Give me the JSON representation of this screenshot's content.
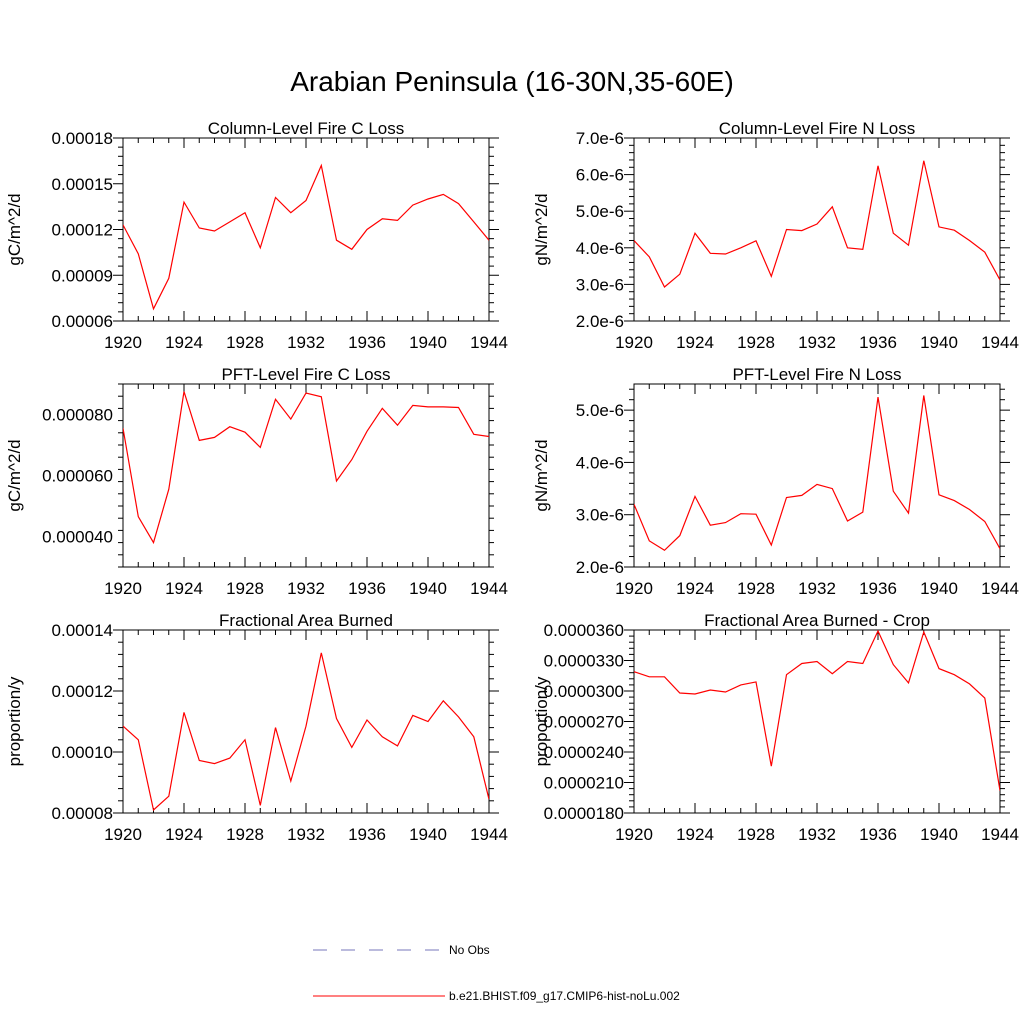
{
  "figure": {
    "title": "Arabian Peninsula (16-30N,35-60E)"
  },
  "legend": [
    {
      "label": "No Obs",
      "color": "#7777bb",
      "style": "dashed"
    },
    {
      "label": "b.e21.BHIST.f09_g17.CMIP6-hist-noLu.002",
      "color": "#ff0000",
      "style": "solid"
    }
  ],
  "chart_data": [
    {
      "type": "line",
      "title": "Column-Level Fire C Loss",
      "ylabel": "gC/m^2/d",
      "xlabel": "",
      "xlim": [
        1920,
        1944
      ],
      "ylim": [
        6e-05,
        0.00018
      ],
      "xticks": [
        1920,
        1924,
        1928,
        1932,
        1936,
        1940,
        1944
      ],
      "yticks": [
        6e-05,
        9e-05,
        0.00012,
        0.00015,
        0.00018
      ],
      "ytick_labels": [
        "0.00006",
        "0.00009",
        "0.00012",
        "0.00015",
        "0.00018"
      ],
      "series": [
        {
          "color": "#ff0000",
          "x": [
            1920,
            1921,
            1922,
            1923,
            1924,
            1925,
            1926,
            1927,
            1928,
            1929,
            1930,
            1931,
            1932,
            1933,
            1934,
            1935,
            1936,
            1937,
            1938,
            1939,
            1940,
            1941,
            1942,
            1943,
            1944
          ],
          "values": [
            0.000123,
            0.000104,
            6.8e-05,
            8.8e-05,
            0.000138,
            0.000121,
            0.000119,
            0.000125,
            0.000131,
            0.000108,
            0.000141,
            0.000131,
            0.000139,
            0.000162,
            0.000113,
            0.000107,
            0.00012,
            0.000127,
            0.000126,
            0.000136,
            0.00014,
            0.000143,
            0.000137,
            0.000125,
            0.000113
          ]
        }
      ]
    },
    {
      "type": "line",
      "title": "Column-Level Fire N Loss",
      "ylabel": "gN/m^2/d",
      "xlabel": "",
      "xlim": [
        1920,
        1944
      ],
      "ylim": [
        2e-06,
        7e-06
      ],
      "xticks": [
        1920,
        1924,
        1928,
        1932,
        1936,
        1940,
        1944
      ],
      "yticks": [
        2e-06,
        3e-06,
        4e-06,
        5e-06,
        6e-06,
        7e-06
      ],
      "ytick_labels": [
        "2.0e-6",
        "3.0e-6",
        "4.0e-6",
        "5.0e-6",
        "6.0e-6",
        "7.0e-6"
      ],
      "series": [
        {
          "color": "#ff0000",
          "x": [
            1920,
            1921,
            1922,
            1923,
            1924,
            1925,
            1926,
            1927,
            1928,
            1929,
            1930,
            1931,
            1932,
            1933,
            1934,
            1935,
            1936,
            1937,
            1938,
            1939,
            1940,
            1941,
            1942,
            1943,
            1944
          ],
          "values": [
            4.2e-06,
            3.75e-06,
            2.93e-06,
            3.28e-06,
            4.4e-06,
            3.85e-06,
            3.83e-06,
            4e-06,
            4.19e-06,
            3.22e-06,
            4.5e-06,
            4.47e-06,
            4.65e-06,
            5.12e-06,
            4e-06,
            3.96e-06,
            6.24e-06,
            4.4e-06,
            4.07e-06,
            6.38e-06,
            4.57e-06,
            4.48e-06,
            4.2e-06,
            3.88e-06,
            3.12e-06
          ]
        }
      ]
    },
    {
      "type": "line",
      "title": "PFT-Level Fire C Loss",
      "ylabel": "gC/m^2/d",
      "xlabel": "",
      "xlim": [
        1920,
        1944
      ],
      "ylim": [
        3e-05,
        9e-05
      ],
      "xticks": [
        1920,
        1924,
        1928,
        1932,
        1936,
        1940,
        1944
      ],
      "yticks": [
        4e-05,
        6e-05,
        8e-05
      ],
      "ytick_labels": [
        "0.000040",
        "0.000060",
        "0.000080"
      ],
      "series": [
        {
          "color": "#ff0000",
          "x": [
            1920,
            1921,
            1922,
            1923,
            1924,
            1925,
            1926,
            1927,
            1928,
            1929,
            1930,
            1931,
            1932,
            1933,
            1934,
            1935,
            1936,
            1937,
            1938,
            1939,
            1940,
            1941,
            1942,
            1943,
            1944
          ],
          "values": [
            7.55e-05,
            4.65e-05,
            3.8e-05,
            5.55e-05,
            8.75e-05,
            7.15e-05,
            7.25e-05,
            7.6e-05,
            7.42e-05,
            6.92e-05,
            8.5e-05,
            7.85e-05,
            8.7e-05,
            8.58e-05,
            5.82e-05,
            6.52e-05,
            7.45e-05,
            8.2e-05,
            7.65e-05,
            8.3e-05,
            8.25e-05,
            8.25e-05,
            8.23e-05,
            7.35e-05,
            7.28e-05
          ]
        }
      ]
    },
    {
      "type": "line",
      "title": "PFT-Level Fire N Loss",
      "ylabel": "gN/m^2/d",
      "xlabel": "",
      "xlim": [
        1920,
        1944
      ],
      "ylim": [
        2e-06,
        5.5e-06
      ],
      "xticks": [
        1920,
        1924,
        1928,
        1932,
        1936,
        1940,
        1944
      ],
      "yticks": [
        2e-06,
        3e-06,
        4e-06,
        5e-06
      ],
      "ytick_labels": [
        "2.0e-6",
        "3.0e-6",
        "4.0e-6",
        "5.0e-6"
      ],
      "series": [
        {
          "color": "#ff0000",
          "x": [
            1920,
            1921,
            1922,
            1923,
            1924,
            1925,
            1926,
            1927,
            1928,
            1929,
            1930,
            1931,
            1932,
            1933,
            1934,
            1935,
            1936,
            1937,
            1938,
            1939,
            1940,
            1941,
            1942,
            1943,
            1944
          ],
          "values": [
            3.2e-06,
            2.5e-06,
            2.32e-06,
            2.6e-06,
            3.35e-06,
            2.8e-06,
            2.85e-06,
            3.02e-06,
            3.01e-06,
            2.42e-06,
            3.33e-06,
            3.37e-06,
            3.58e-06,
            3.5e-06,
            2.88e-06,
            3.05e-06,
            5.25e-06,
            3.45e-06,
            3.03e-06,
            5.28e-06,
            3.38e-06,
            3.27e-06,
            3.1e-06,
            2.87e-06,
            2.35e-06
          ]
        }
      ]
    },
    {
      "type": "line",
      "title": "Fractional Area Burned",
      "ylabel": "proportion/y",
      "xlabel": "",
      "xlim": [
        1920,
        1944
      ],
      "ylim": [
        8e-05,
        0.00014
      ],
      "xticks": [
        1920,
        1924,
        1928,
        1932,
        1936,
        1940,
        1944
      ],
      "yticks": [
        8e-05,
        0.0001,
        0.00012,
        0.00014
      ],
      "ytick_labels": [
        "0.00008",
        "0.00010",
        "0.00012",
        "0.00014"
      ],
      "series": [
        {
          "color": "#ff0000",
          "x": [
            1920,
            1921,
            1922,
            1923,
            1924,
            1925,
            1926,
            1927,
            1928,
            1929,
            1930,
            1931,
            1932,
            1933,
            1934,
            1935,
            1936,
            1937,
            1938,
            1939,
            1940,
            1941,
            1942,
            1943,
            1944
          ],
          "values": [
            0.0001085,
            0.000104,
            8.1e-05,
            8.55e-05,
            0.000113,
            9.72e-05,
            9.62e-05,
            9.8e-05,
            0.000104,
            8.25e-05,
            0.000108,
            9.05e-05,
            0.0001085,
            0.0001325,
            0.000111,
            0.0001015,
            0.0001105,
            0.000105,
            0.000102,
            0.000112,
            0.00011,
            0.0001168,
            0.0001115,
            0.000105,
            8.45e-05
          ]
        }
      ]
    },
    {
      "type": "line",
      "title": "Fractional Area Burned - Crop",
      "ylabel": "proportion/y",
      "xlabel": "",
      "xlim": [
        1920,
        1944
      ],
      "ylim": [
        1.8e-05,
        3.6e-05
      ],
      "xticks": [
        1920,
        1924,
        1928,
        1932,
        1936,
        1940,
        1944
      ],
      "yticks": [
        1.8e-05,
        2.1e-05,
        2.4e-05,
        2.7e-05,
        3e-05,
        3.3e-05,
        3.6e-05
      ],
      "ytick_labels": [
        "0.0000180",
        "0.0000210",
        "0.0000240",
        "0.0000270",
        "0.0000300",
        "0.0000330",
        "0.0000360"
      ],
      "series": [
        {
          "color": "#ff0000",
          "x": [
            1920,
            1921,
            1922,
            1923,
            1924,
            1925,
            1926,
            1927,
            1928,
            1929,
            1930,
            1931,
            1932,
            1933,
            1934,
            1935,
            1936,
            1937,
            1938,
            1939,
            1940,
            1941,
            1942,
            1943,
            1944
          ],
          "values": [
            3.19e-05,
            3.14e-05,
            3.14e-05,
            2.98e-05,
            2.97e-05,
            3.01e-05,
            2.99e-05,
            3.06e-05,
            3.09e-05,
            2.26e-05,
            3.16e-05,
            3.27e-05,
            3.29e-05,
            3.17e-05,
            3.29e-05,
            3.27e-05,
            3.59e-05,
            3.26e-05,
            3.08e-05,
            3.58e-05,
            3.22e-05,
            3.16e-05,
            3.07e-05,
            2.93e-05,
            2.02e-05
          ]
        }
      ]
    }
  ]
}
